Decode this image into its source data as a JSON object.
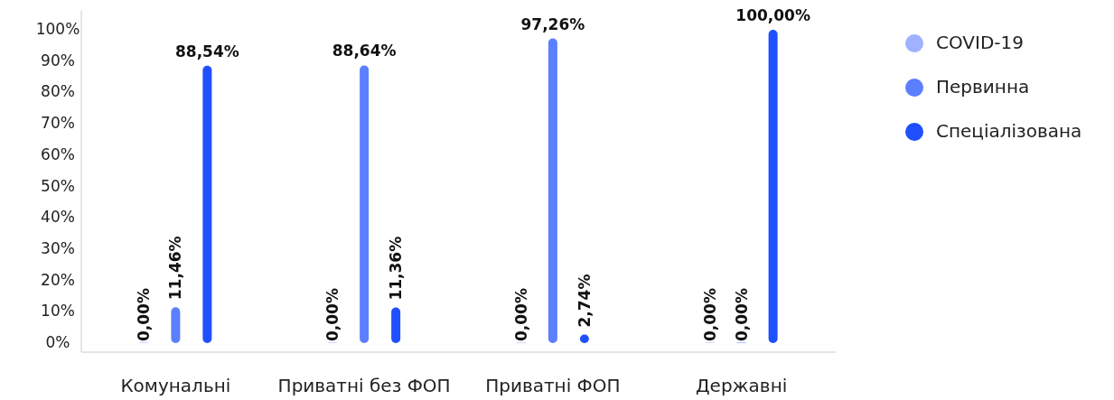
{
  "chart_data": {
    "type": "bar",
    "categories": [
      "Комунальні",
      "Приватні без ФОП",
      "Приватні ФОП",
      "Державні"
    ],
    "series": [
      {
        "name": "COVID-19",
        "color": "#9fb1ff",
        "values": [
          0,
          0,
          0,
          0
        ],
        "value_labels": [
          "0,00%",
          "0,00%",
          "0,00%",
          "0,00%"
        ]
      },
      {
        "name": "Первинна",
        "color": "#5b7fff",
        "values": [
          11.46,
          88.64,
          97.26,
          0
        ],
        "value_labels": [
          "11,46%",
          "88,64%",
          "97,26%",
          "0,00%"
        ]
      },
      {
        "name": "Спеціалізована",
        "color": "#1f4fff",
        "values": [
          88.54,
          11.36,
          2.74,
          100
        ],
        "value_labels": [
          "88,54%",
          "11,36%",
          "2,74%",
          "100,00%"
        ]
      }
    ],
    "ylim": [
      0,
      100
    ],
    "yticks": [
      {
        "value": 0,
        "label": "0%"
      },
      {
        "value": 10,
        "label": "10%"
      },
      {
        "value": 20,
        "label": "20%"
      },
      {
        "value": 30,
        "label": "30%"
      },
      {
        "value": 40,
        "label": "40%"
      },
      {
        "value": 50,
        "label": "50%"
      },
      {
        "value": 60,
        "label": "60%"
      },
      {
        "value": 70,
        "label": "70%"
      },
      {
        "value": 80,
        "label": "80%"
      },
      {
        "value": 90,
        "label": "90%"
      },
      {
        "value": 100,
        "label": "100%"
      }
    ],
    "legend": "right"
  }
}
